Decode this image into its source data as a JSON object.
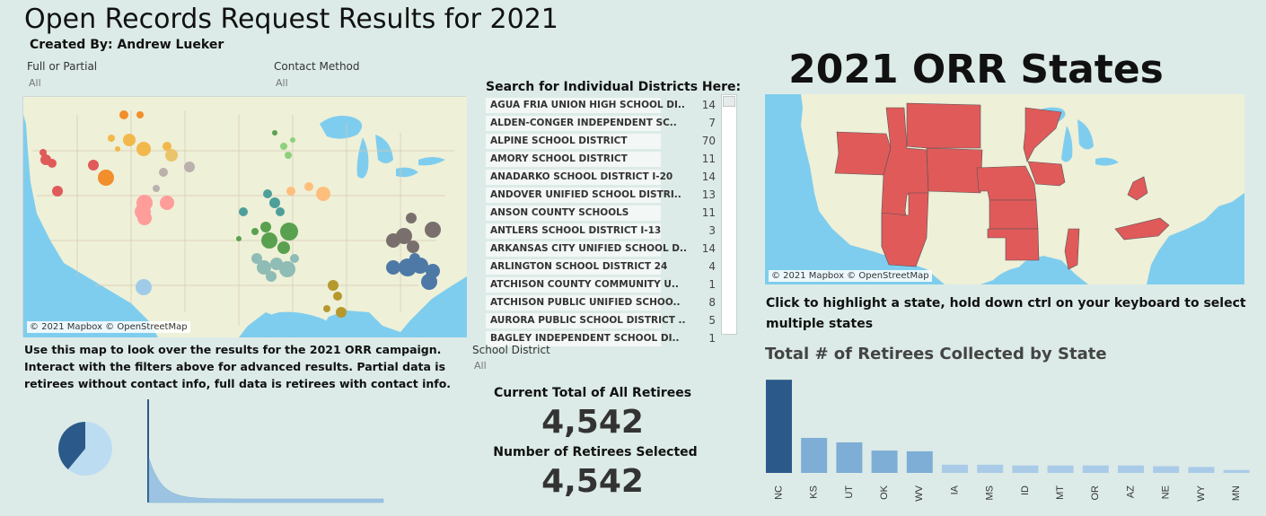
{
  "title": "Open Records Request Results for 2021",
  "subtitle": "Created By: Andrew Lueker",
  "filters": {
    "full_partial": {
      "label": "Full or Partial",
      "value": "All"
    },
    "contact_method": {
      "label": "Contact Method",
      "value": "All"
    },
    "school_district": {
      "label": "School District",
      "value": "All"
    }
  },
  "map_attribution": "© 2021 Mapbox © OpenStreetMap",
  "left_description": "Use this map to look over the results for the 2021 ORR campaign. Interact with the filters above for advanced results. Partial data is retirees without contact info, full data is retirees with contact info.",
  "search": {
    "title": "Search for Individual Districts Here:",
    "districts": [
      {
        "name": "AGUA FRIA UNION HIGH SCHOOL DI..",
        "count": "14"
      },
      {
        "name": "ALDEN-CONGER INDEPENDENT SC..",
        "count": "7"
      },
      {
        "name": "ALPINE SCHOOL DISTRICT",
        "count": "70"
      },
      {
        "name": "AMORY SCHOOL DISTRICT",
        "count": "11"
      },
      {
        "name": "ANADARKO SCHOOL DISTRICT I-20",
        "count": "14"
      },
      {
        "name": "ANDOVER UNIFIED SCHOOL DISTRI..",
        "count": "13"
      },
      {
        "name": "ANSON COUNTY SCHOOLS",
        "count": "11"
      },
      {
        "name": "ANTLERS SCHOOL DISTRICT I-13",
        "count": "3"
      },
      {
        "name": "ARKANSAS CITY UNIFIED SCHOOL D..",
        "count": "14"
      },
      {
        "name": "ARLINGTON SCHOOL DISTRICT 24",
        "count": "4"
      },
      {
        "name": "ATCHISON COUNTY COMMUNITY U..",
        "count": "1"
      },
      {
        "name": "ATCHISON PUBLIC UNIFIED SCHOO..",
        "count": "8"
      },
      {
        "name": "AURORA PUBLIC SCHOOL DISTRICT ..",
        "count": "5"
      },
      {
        "name": "BAGLEY INDEPENDENT SCHOOL DI..",
        "count": "1"
      }
    ]
  },
  "kpi": {
    "total_label": "Current Total of All Retirees",
    "total_value": "4,542",
    "selected_label": "Number of Retirees Selected",
    "selected_value": "4,542"
  },
  "states_title": "2021 ORR States",
  "right_description": "Click to highlight a state, hold down ctrl on your keyboard to select multiple states",
  "colors": {
    "background": "#dcebe7",
    "water": "#7fcdee",
    "land": "#eef0d8",
    "state_fill": "#e05a5a",
    "bar_dark": "#2b5a8a",
    "bar_mid": "#7eaed6",
    "bar_light": "#a9cbe8",
    "pie_dark": "#2b5a8a",
    "pie_light": "#bcdcf2"
  },
  "chart_data": {
    "type": "bar",
    "title": "Total # of Retirees Collected by State",
    "categories": [
      "NC",
      "KS",
      "UT",
      "OK",
      "WV",
      "IA",
      "MS",
      "ID",
      "MT",
      "OR",
      "AZ",
      "NE",
      "WY",
      "MN"
    ],
    "values": [
      1250,
      470,
      410,
      300,
      290,
      110,
      110,
      100,
      100,
      100,
      100,
      90,
      80,
      40
    ],
    "ylim": [
      0,
      1300
    ]
  },
  "pie_data": {
    "type": "pie",
    "values": [
      0.39,
      0.61
    ]
  }
}
